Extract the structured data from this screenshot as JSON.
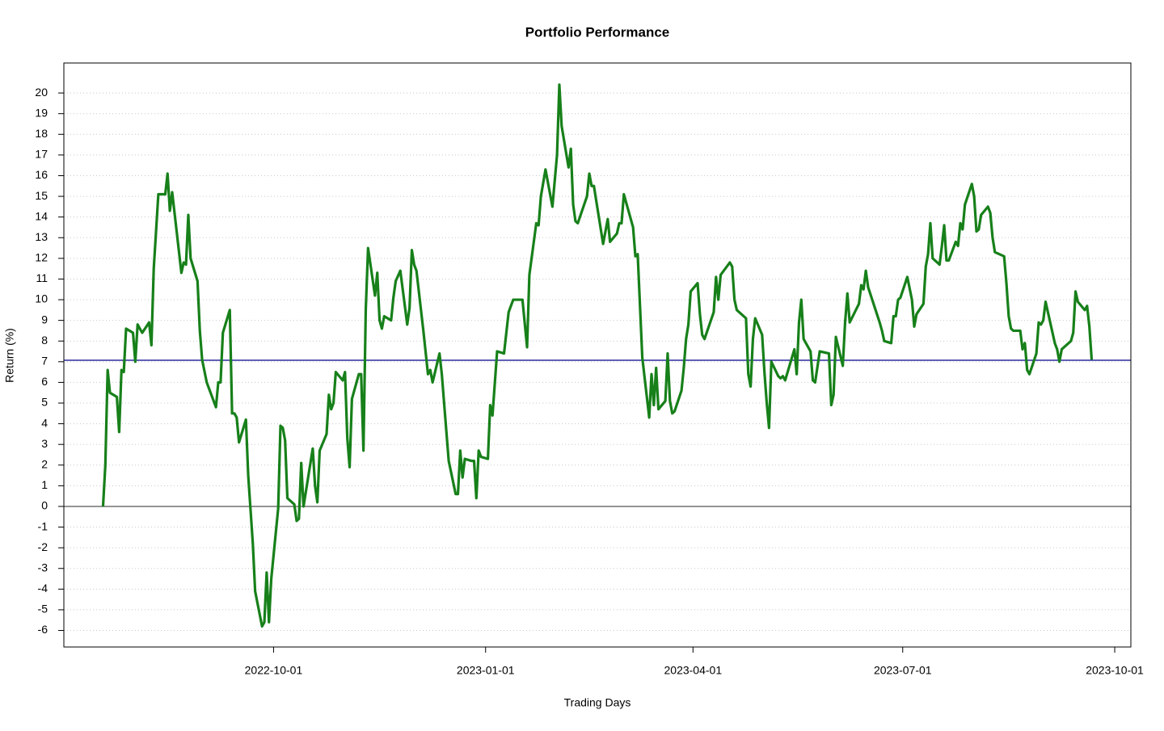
{
  "chart_data": {
    "type": "line",
    "title": "Portfolio Performance",
    "x_label": "Trading Days",
    "y_label": "Return (%)",
    "color": "#17801a",
    "grid": true,
    "xlim": [
      "2022-07-02",
      "2023-10-08"
    ],
    "xticks": [
      "2022-10-01",
      "2023-01-01",
      "2023-04-01",
      "2023-07-01",
      "2023-10-01"
    ],
    "ylim": [
      -6.8,
      21.45
    ],
    "yticks": [
      -6,
      -5,
      -4,
      -3,
      -2,
      -1,
      0,
      1,
      2,
      3,
      4,
      5,
      6,
      7,
      8,
      9,
      10,
      11,
      12,
      13,
      14,
      15,
      16,
      17,
      18,
      19,
      20
    ],
    "hlines": [
      {
        "value": 0,
        "color": "#555555"
      },
      {
        "value": 7.07,
        "color": "#00008b"
      }
    ],
    "x": [
      "2022-07-19",
      "2022-07-20",
      "2022-07-21",
      "2022-07-22",
      "2022-07-25",
      "2022-07-26",
      "2022-07-27",
      "2022-07-28",
      "2022-07-29",
      "2022-08-01",
      "2022-08-02",
      "2022-08-03",
      "2022-08-05",
      "2022-08-08",
      "2022-08-09",
      "2022-08-10",
      "2022-08-12",
      "2022-08-15",
      "2022-08-16",
      "2022-08-17",
      "2022-08-18",
      "2022-08-22",
      "2022-08-23",
      "2022-08-24",
      "2022-08-25",
      "2022-08-26",
      "2022-08-29",
      "2022-08-30",
      "2022-08-31",
      "2022-09-02",
      "2022-09-06",
      "2022-09-07",
      "2022-09-08",
      "2022-09-09",
      "2022-09-12",
      "2022-09-13",
      "2022-09-14",
      "2022-09-15",
      "2022-09-16",
      "2022-09-19",
      "2022-09-20",
      "2022-09-22",
      "2022-09-23",
      "2022-09-26",
      "2022-09-27",
      "2022-09-28",
      "2022-09-29",
      "2022-09-30",
      "2022-10-03",
      "2022-10-04",
      "2022-10-05",
      "2022-10-06",
      "2022-10-07",
      "2022-10-10",
      "2022-10-11",
      "2022-10-12",
      "2022-10-13",
      "2022-10-14",
      "2022-10-18",
      "2022-10-19",
      "2022-10-20",
      "2022-10-21",
      "2022-10-24",
      "2022-10-25",
      "2022-10-26",
      "2022-10-27",
      "2022-10-28",
      "2022-10-31",
      "2022-11-01",
      "2022-11-02",
      "2022-11-03",
      "2022-11-04",
      "2022-11-07",
      "2022-11-08",
      "2022-11-09",
      "2022-11-10",
      "2022-11-11",
      "2022-11-14",
      "2022-11-15",
      "2022-11-16",
      "2022-11-17",
      "2022-11-18",
      "2022-11-21",
      "2022-11-22",
      "2022-11-23",
      "2022-11-25",
      "2022-11-28",
      "2022-11-29",
      "2022-11-30",
      "2022-12-01",
      "2022-12-02",
      "2022-12-05",
      "2022-12-07",
      "2022-12-08",
      "2022-12-09",
      "2022-12-12",
      "2022-12-13",
      "2022-12-15",
      "2022-12-16",
      "2022-12-19",
      "2022-12-20",
      "2022-12-21",
      "2022-12-22",
      "2022-12-23",
      "2022-12-26",
      "2022-12-27",
      "2022-12-28",
      "2022-12-29",
      "2022-12-30",
      "2023-01-02",
      "2023-01-03",
      "2023-01-04",
      "2023-01-06",
      "2023-01-09",
      "2023-01-11",
      "2023-01-13",
      "2023-01-17",
      "2023-01-19",
      "2023-01-20",
      "2023-01-23",
      "2023-01-24",
      "2023-01-25",
      "2023-01-27",
      "2023-01-30",
      "2023-02-01",
      "2023-02-02",
      "2023-02-03",
      "2023-02-06",
      "2023-02-07",
      "2023-02-08",
      "2023-02-09",
      "2023-02-10",
      "2023-02-14",
      "2023-02-15",
      "2023-02-16",
      "2023-02-17",
      "2023-02-21",
      "2023-02-23",
      "2023-02-24",
      "2023-02-27",
      "2023-02-28",
      "2023-03-01",
      "2023-03-02",
      "2023-03-06",
      "2023-03-07",
      "2023-03-08",
      "2023-03-10",
      "2023-03-13",
      "2023-03-14",
      "2023-03-15",
      "2023-03-16",
      "2023-03-17",
      "2023-03-20",
      "2023-03-21",
      "2023-03-22",
      "2023-03-23",
      "2023-03-24",
      "2023-03-27",
      "2023-03-28",
      "2023-03-29",
      "2023-03-30",
      "2023-03-31",
      "2023-04-03",
      "2023-04-04",
      "2023-04-05",
      "2023-04-06",
      "2023-04-10",
      "2023-04-11",
      "2023-04-12",
      "2023-04-13",
      "2023-04-17",
      "2023-04-18",
      "2023-04-19",
      "2023-04-20",
      "2023-04-24",
      "2023-04-25",
      "2023-04-26",
      "2023-04-27",
      "2023-04-28",
      "2023-05-01",
      "2023-05-02",
      "2023-05-03",
      "2023-05-04",
      "2023-05-05",
      "2023-05-08",
      "2023-05-09",
      "2023-05-10",
      "2023-05-11",
      "2023-05-15",
      "2023-05-16",
      "2023-05-17",
      "2023-05-18",
      "2023-05-19",
      "2023-05-22",
      "2023-05-23",
      "2023-05-24",
      "2023-05-26",
      "2023-05-30",
      "2023-05-31",
      "2023-06-01",
      "2023-06-02",
      "2023-06-05",
      "2023-06-06",
      "2023-06-07",
      "2023-06-08",
      "2023-06-12",
      "2023-06-13",
      "2023-06-14",
      "2023-06-15",
      "2023-06-16",
      "2023-06-21",
      "2023-06-22",
      "2023-06-23",
      "2023-06-26",
      "2023-06-27",
      "2023-06-28",
      "2023-06-29",
      "2023-06-30",
      "2023-07-03",
      "2023-07-05",
      "2023-07-06",
      "2023-07-07",
      "2023-07-10",
      "2023-07-11",
      "2023-07-12",
      "2023-07-13",
      "2023-07-14",
      "2023-07-17",
      "2023-07-18",
      "2023-07-19",
      "2023-07-20",
      "2023-07-21",
      "2023-07-24",
      "2023-07-25",
      "2023-07-26",
      "2023-07-27",
      "2023-07-28",
      "2023-07-31",
      "2023-08-01",
      "2023-08-02",
      "2023-08-03",
      "2023-08-04",
      "2023-08-07",
      "2023-08-08",
      "2023-08-09",
      "2023-08-10",
      "2023-08-14",
      "2023-08-15",
      "2023-08-16",
      "2023-08-17",
      "2023-08-18",
      "2023-08-21",
      "2023-08-22",
      "2023-08-23",
      "2023-08-24",
      "2023-08-25",
      "2023-08-28",
      "2023-08-29",
      "2023-08-30",
      "2023-08-31",
      "2023-09-01",
      "2023-09-05",
      "2023-09-06",
      "2023-09-07",
      "2023-09-08",
      "2023-09-12",
      "2023-09-13",
      "2023-09-14",
      "2023-09-15",
      "2023-09-18",
      "2023-09-19",
      "2023-09-20",
      "2023-09-21"
    ],
    "values": [
      0,
      2,
      6.6,
      5.5,
      5.3,
      3.6,
      6.6,
      6.5,
      8.6,
      8.4,
      7.0,
      8.8,
      8.4,
      8.9,
      7.8,
      11.5,
      15.1,
      15.1,
      16.1,
      14.3,
      15.2,
      11.3,
      11.8,
      11.7,
      14.1,
      12.0,
      10.9,
      8.5,
      7.1,
      6.0,
      4.8,
      6.0,
      6.0,
      8.4,
      9.5,
      4.5,
      4.5,
      4.3,
      3.1,
      4.2,
      1.5,
      -1.8,
      -4.1,
      -5.8,
      -5.6,
      -3.2,
      -5.6,
      -3.5,
      -0.1,
      3.9,
      3.8,
      3.2,
      0.4,
      0.1,
      -0.7,
      -0.6,
      2.1,
      0,
      2.8,
      1.0,
      0.2,
      2.7,
      3.5,
      5.4,
      4.7,
      5.0,
      6.5,
      6.1,
      6.5,
      3.3,
      1.9,
      5.2,
      6.4,
      6.4,
      2.7,
      9.5,
      12.5,
      10.2,
      11.3,
      9.0,
      8.6,
      9.2,
      9.0,
      10.1,
      10.9,
      11.4,
      8.8,
      9.6,
      12.4,
      11.7,
      11.4,
      8.5,
      6.4,
      6.6,
      6.0,
      7.4,
      6.4,
      3.6,
      2.2,
      0.6,
      0.6,
      2.7,
      1.4,
      2.3,
      2.2,
      2.2,
      0.4,
      2.7,
      2.4,
      2.3,
      4.9,
      4.4,
      7.5,
      7.4,
      9.4,
      10.0,
      10.0,
      7.7,
      11.2,
      13.7,
      13.6,
      15.0,
      16.3,
      14.5,
      17.0,
      20.4,
      18.4,
      16.4,
      17.3,
      14.6,
      13.8,
      13.7,
      15.0,
      16.1,
      15.5,
      15.5,
      12.7,
      13.9,
      12.8,
      13.2,
      13.7,
      13.7,
      15.1,
      13.5,
      12.1,
      12.2,
      7.2,
      4.3,
      6.4,
      4.9,
      6.7,
      4.7,
      5.1,
      7.4,
      5.1,
      4.5,
      4.6,
      5.6,
      6.7,
      8.1,
      8.8,
      10.4,
      10.8,
      9.3,
      8.3,
      8.1,
      9.4,
      11.1,
      10.0,
      11.2,
      11.8,
      11.6,
      10.0,
      9.5,
      9.1,
      6.4,
      5.8,
      8.1,
      9.1,
      8.3,
      6.5,
      5.0,
      3.8,
      7.0,
      6.3,
      6.2,
      6.3,
      6.1,
      7.6,
      6.4,
      8.9,
      10.0,
      8.1,
      7.5,
      6.1,
      6.0,
      7.5,
      7.4,
      4.9,
      5.4,
      8.2,
      6.8,
      8.9,
      10.3,
      8.9,
      9.8,
      10.7,
      10.5,
      11.4,
      10.6,
      8.9,
      8.5,
      8.0,
      7.9,
      9.2,
      9.2,
      10.0,
      10.1,
      11.1,
      10.0,
      8.7,
      9.3,
      9.8,
      11.6,
      12.2,
      13.7,
      12.0,
      11.7,
      12.6,
      13.6,
      11.9,
      11.9,
      12.8,
      12.6,
      13.7,
      13.4,
      14.6,
      15.6,
      15.0,
      13.3,
      13.4,
      14.1,
      14.5,
      14.2,
      13.0,
      12.3,
      12.1,
      10.8,
      9.2,
      8.6,
      8.5,
      8.5,
      7.6,
      7.9,
      6.6,
      6.4,
      7.4,
      8.9,
      8.8,
      9.0,
      9.9,
      7.9,
      7.6,
      7.0,
      7.6,
      8.0,
      8.4,
      10.4,
      9.9,
      9.5,
      9.7,
      8.7,
      7.1
    ]
  }
}
